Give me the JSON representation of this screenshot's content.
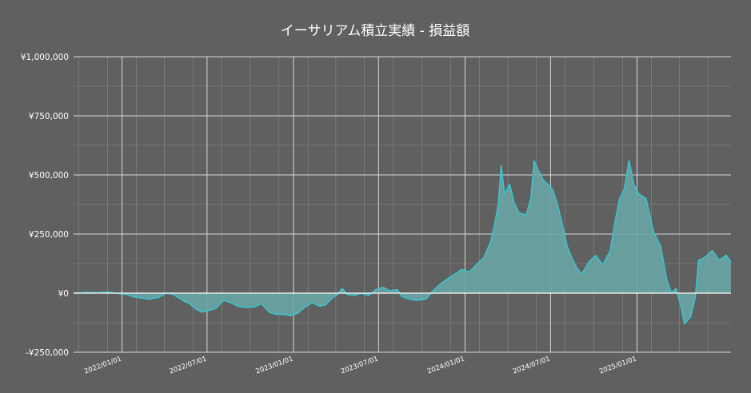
{
  "chart_data": {
    "type": "area",
    "title": "イーサリアム積立実績 - 損益額",
    "xlabel": "",
    "ylabel": "",
    "x_range": [
      "2021-09-20",
      "2025-07-20"
    ],
    "ylim": [
      -250000,
      1000000
    ],
    "y_ticks": [
      {
        "value": 1000000,
        "label": "¥1,000,000"
      },
      {
        "value": 750000,
        "label": "¥750,000"
      },
      {
        "value": 500000,
        "label": "¥500,000"
      },
      {
        "value": 250000,
        "label": "¥250,000"
      },
      {
        "value": 0,
        "label": "¥0"
      },
      {
        "value": -250000,
        "label": "-¥250,000"
      }
    ],
    "x_ticks": [
      {
        "date": "2022-01-01",
        "label": "2022/01/01"
      },
      {
        "date": "2022-07-01",
        "label": "2022/07/01"
      },
      {
        "date": "2023-01-01",
        "label": "2023/01/01"
      },
      {
        "date": "2023-07-01",
        "label": "2023/07/01"
      },
      {
        "date": "2024-01-01",
        "label": "2024/01/01"
      },
      {
        "date": "2024-07-01",
        "label": "2024/07/01"
      },
      {
        "date": "2025-01-01",
        "label": "2025/01/01"
      }
    ],
    "grid": true,
    "series": [
      {
        "color": "#3cc3cc",
        "fill_color": "#6aa5a6",
        "points": [
          [
            "2021-09-20",
            0
          ],
          [
            "2021-10-15",
            3000
          ],
          [
            "2021-11-10",
            2000
          ],
          [
            "2021-12-01",
            5000
          ],
          [
            "2021-12-20",
            0
          ],
          [
            "2022-01-10",
            -5000
          ],
          [
            "2022-01-25",
            -15000
          ],
          [
            "2022-02-10",
            -20000
          ],
          [
            "2022-03-01",
            -25000
          ],
          [
            "2022-03-20",
            -18000
          ],
          [
            "2022-04-05",
            0
          ],
          [
            "2022-04-20",
            -5000
          ],
          [
            "2022-05-10",
            -30000
          ],
          [
            "2022-05-25",
            -45000
          ],
          [
            "2022-06-10",
            -70000
          ],
          [
            "2022-06-20",
            -80000
          ],
          [
            "2022-07-01",
            -75000
          ],
          [
            "2022-07-20",
            -65000
          ],
          [
            "2022-08-05",
            -30000
          ],
          [
            "2022-08-20",
            -40000
          ],
          [
            "2022-09-05",
            -55000
          ],
          [
            "2022-09-20",
            -60000
          ],
          [
            "2022-10-10",
            -58000
          ],
          [
            "2022-10-25",
            -45000
          ],
          [
            "2022-11-10",
            -80000
          ],
          [
            "2022-11-25",
            -90000
          ],
          [
            "2022-12-10",
            -90000
          ],
          [
            "2022-12-25",
            -95000
          ],
          [
            "2023-01-10",
            -85000
          ],
          [
            "2023-01-25",
            -60000
          ],
          [
            "2023-02-10",
            -40000
          ],
          [
            "2023-02-25",
            -55000
          ],
          [
            "2023-03-10",
            -50000
          ],
          [
            "2023-03-25",
            -20000
          ],
          [
            "2023-04-05",
            -5000
          ],
          [
            "2023-04-15",
            20000
          ],
          [
            "2023-04-25",
            -5000
          ],
          [
            "2023-05-10",
            -10000
          ],
          [
            "2023-05-25",
            0
          ],
          [
            "2023-06-10",
            -10000
          ],
          [
            "2023-06-25",
            15000
          ],
          [
            "2023-07-10",
            25000
          ],
          [
            "2023-07-25",
            10000
          ],
          [
            "2023-08-10",
            15000
          ],
          [
            "2023-08-20",
            -15000
          ],
          [
            "2023-09-05",
            -25000
          ],
          [
            "2023-09-20",
            -30000
          ],
          [
            "2023-10-10",
            -25000
          ],
          [
            "2023-10-25",
            10000
          ],
          [
            "2023-11-10",
            40000
          ],
          [
            "2023-11-25",
            60000
          ],
          [
            "2023-12-10",
            80000
          ],
          [
            "2023-12-25",
            100000
          ],
          [
            "2024-01-10",
            90000
          ],
          [
            "2024-01-25",
            120000
          ],
          [
            "2024-02-10",
            150000
          ],
          [
            "2024-02-25",
            220000
          ],
          [
            "2024-03-05",
            300000
          ],
          [
            "2024-03-12",
            380000
          ],
          [
            "2024-03-18",
            540000
          ],
          [
            "2024-03-25",
            420000
          ],
          [
            "2024-04-05",
            460000
          ],
          [
            "2024-04-15",
            380000
          ],
          [
            "2024-04-25",
            340000
          ],
          [
            "2024-05-10",
            330000
          ],
          [
            "2024-05-20",
            400000
          ],
          [
            "2024-05-27",
            560000
          ],
          [
            "2024-06-05",
            520000
          ],
          [
            "2024-06-15",
            480000
          ],
          [
            "2024-06-25",
            460000
          ],
          [
            "2024-07-05",
            440000
          ],
          [
            "2024-07-15",
            380000
          ],
          [
            "2024-07-25",
            300000
          ],
          [
            "2024-08-05",
            200000
          ],
          [
            "2024-08-15",
            150000
          ],
          [
            "2024-08-25",
            110000
          ],
          [
            "2024-09-05",
            80000
          ],
          [
            "2024-09-20",
            130000
          ],
          [
            "2024-10-05",
            160000
          ],
          [
            "2024-10-20",
            120000
          ],
          [
            "2024-11-05",
            180000
          ],
          [
            "2024-11-15",
            300000
          ],
          [
            "2024-11-25",
            400000
          ],
          [
            "2024-12-05",
            440000
          ],
          [
            "2024-12-15",
            560000
          ],
          [
            "2024-12-25",
            460000
          ],
          [
            "2025-01-05",
            420000
          ],
          [
            "2025-01-20",
            400000
          ],
          [
            "2025-02-05",
            260000
          ],
          [
            "2025-02-20",
            200000
          ],
          [
            "2025-03-05",
            60000
          ],
          [
            "2025-03-15",
            0
          ],
          [
            "2025-03-25",
            20000
          ],
          [
            "2025-04-05",
            -60000
          ],
          [
            "2025-04-12",
            -130000
          ],
          [
            "2025-04-25",
            -100000
          ],
          [
            "2025-05-05",
            -20000
          ],
          [
            "2025-05-12",
            140000
          ],
          [
            "2025-05-25",
            150000
          ],
          [
            "2025-06-10",
            180000
          ],
          [
            "2025-06-25",
            140000
          ],
          [
            "2025-07-10",
            160000
          ],
          [
            "2025-07-20",
            130000
          ]
        ]
      }
    ]
  }
}
